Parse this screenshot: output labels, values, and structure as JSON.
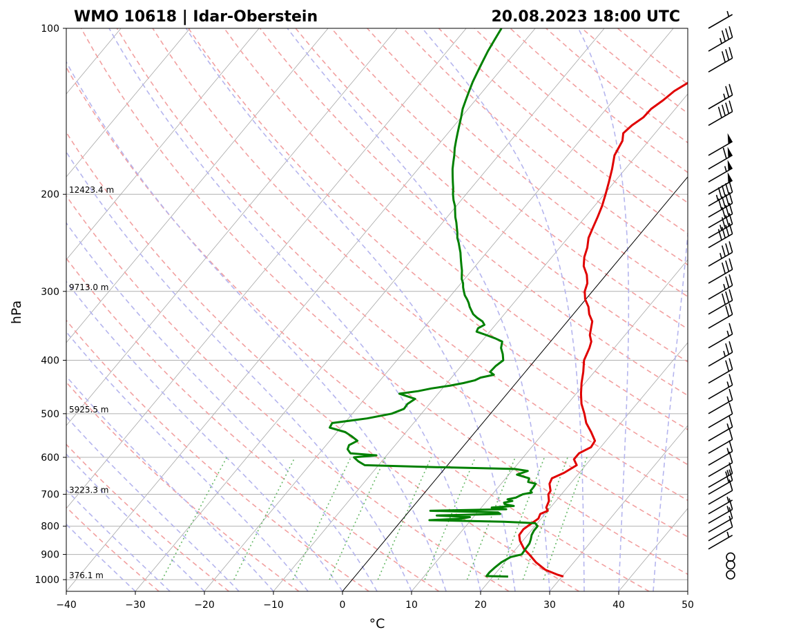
{
  "titles": {
    "left": "WMO 10618 | Idar-Oberstein",
    "right": "20.08.2023 18:00 UTC"
  },
  "chart_data": {
    "type": "skew-t log-p sounding",
    "title_left": "WMO 10618 | Idar-Oberstein",
    "title_right": "20.08.2023 18:00 UTC",
    "xlabel": "°C",
    "ylabel": "hPa",
    "xlim": [
      -40,
      50
    ],
    "ylim": [
      1050,
      100
    ],
    "y_scale": "log",
    "x_ticks": [
      -40,
      -30,
      -20,
      -10,
      0,
      10,
      20,
      30,
      40,
      50
    ],
    "y_ticks": [
      100,
      200,
      300,
      400,
      500,
      600,
      700,
      800,
      900,
      1000
    ],
    "grid": true,
    "height_labels": [
      {
        "p": 200,
        "text": "12423.4 m"
      },
      {
        "p": 300,
        "text": "9713.0 m"
      },
      {
        "p": 500,
        "text": "5925.5 m"
      },
      {
        "p": 700,
        "text": "3223.3 m"
      },
      {
        "p": 1000,
        "text": "376.1 m"
      }
    ],
    "series": [
      {
        "role": "temperature",
        "color": "#e00000",
        "points": [
          [
            987,
            30.2
          ],
          [
            980,
            29.2
          ],
          [
            960,
            26.8
          ],
          [
            930,
            24.5
          ],
          [
            900,
            22.6
          ],
          [
            880,
            21.2
          ],
          [
            850,
            19.6
          ],
          [
            830,
            18.8
          ],
          [
            810,
            18.7
          ],
          [
            790,
            19.2
          ],
          [
            775,
            19.6
          ],
          [
            760,
            19.3
          ],
          [
            750,
            20.0
          ],
          [
            740,
            19.4
          ],
          [
            720,
            19.0
          ],
          [
            700,
            18.1
          ],
          [
            690,
            18.0
          ],
          [
            670,
            17.0
          ],
          [
            655,
            16.7
          ],
          [
            640,
            17.8
          ],
          [
            620,
            18.7
          ],
          [
            605,
            17.6
          ],
          [
            590,
            17.6
          ],
          [
            575,
            18.6
          ],
          [
            560,
            18.4
          ],
          [
            540,
            16.8
          ],
          [
            520,
            15.0
          ],
          [
            500,
            13.6
          ],
          [
            480,
            12.0
          ],
          [
            460,
            10.7
          ],
          [
            440,
            9.5
          ],
          [
            420,
            8.4
          ],
          [
            400,
            7.1
          ],
          [
            380,
            6.4
          ],
          [
            370,
            5.9
          ],
          [
            360,
            4.9
          ],
          [
            340,
            3.6
          ],
          [
            330,
            2.3
          ],
          [
            320,
            1.3
          ],
          [
            310,
            -0.1
          ],
          [
            300,
            -1.1
          ],
          [
            290,
            -1.7
          ],
          [
            280,
            -2.8
          ],
          [
            270,
            -4.3
          ],
          [
            260,
            -5.3
          ],
          [
            250,
            -6.0
          ],
          [
            240,
            -7.0
          ],
          [
            230,
            -7.6
          ],
          [
            220,
            -8.2
          ],
          [
            210,
            -8.9
          ],
          [
            200,
            -9.8
          ],
          [
            190,
            -10.8
          ],
          [
            180,
            -11.9
          ],
          [
            170,
            -13.2
          ],
          [
            160,
            -13.8
          ],
          [
            155,
            -14.6
          ],
          [
            150,
            -14.3
          ],
          [
            145,
            -13.6
          ],
          [
            140,
            -13.5
          ],
          [
            135,
            -12.8
          ],
          [
            130,
            -12.3
          ],
          [
            125,
            -11.2
          ],
          [
            120,
            -10.6
          ],
          [
            115,
            -9.1
          ],
          [
            112,
            -7.6
          ],
          [
            110,
            -6.3
          ],
          [
            106,
            -4.5
          ],
          [
            103,
            -3.2
          ],
          [
            100,
            -2.5
          ]
        ]
      },
      {
        "role": "dewpoint",
        "color": "#008000",
        "points": [
          [
            987,
            22.2
          ],
          [
            985,
            19.0
          ],
          [
            970,
            19.0
          ],
          [
            950,
            19.2
          ],
          [
            930,
            19.5
          ],
          [
            910,
            20.2
          ],
          [
            900,
            21.5
          ],
          [
            880,
            21.4
          ],
          [
            860,
            21.3
          ],
          [
            845,
            21.0
          ],
          [
            830,
            20.6
          ],
          [
            815,
            20.4
          ],
          [
            800,
            20.4
          ],
          [
            790,
            19.7
          ],
          [
            785,
            15.0
          ],
          [
            780,
            4.0
          ],
          [
            775,
            8.5
          ],
          [
            770,
            9.5
          ],
          [
            765,
            4.5
          ],
          [
            760,
            13.5
          ],
          [
            755,
            13.0
          ],
          [
            750,
            3.0
          ],
          [
            745,
            13.8
          ],
          [
            740,
            11.5
          ],
          [
            735,
            14.5
          ],
          [
            730,
            13.0
          ],
          [
            725,
            12.7
          ],
          [
            720,
            13.7
          ],
          [
            715,
            12.8
          ],
          [
            710,
            13.8
          ],
          [
            705,
            14.1
          ],
          [
            700,
            14.4
          ],
          [
            695,
            15.5
          ],
          [
            690,
            15.1
          ],
          [
            680,
            15.1
          ],
          [
            670,
            15.0
          ],
          [
            665,
            13.7
          ],
          [
            655,
            13.4
          ],
          [
            645,
            11.2
          ],
          [
            635,
            12.3
          ],
          [
            630,
            10.2
          ],
          [
            625,
            -1.5
          ],
          [
            620,
            -12.0
          ],
          [
            610,
            -13.4
          ],
          [
            600,
            -14.5
          ],
          [
            595,
            -11.5
          ],
          [
            590,
            -15.5
          ],
          [
            580,
            -16.4
          ],
          [
            570,
            -16.7
          ],
          [
            560,
            -16.0
          ],
          [
            550,
            -17.3
          ],
          [
            540,
            -18.8
          ],
          [
            530,
            -21.6
          ],
          [
            520,
            -21.8
          ],
          [
            510,
            -17.3
          ],
          [
            500,
            -14.3
          ],
          [
            490,
            -13.1
          ],
          [
            480,
            -13.2
          ],
          [
            470,
            -12.7
          ],
          [
            460,
            -15.6
          ],
          [
            455,
            -13.2
          ],
          [
            450,
            -11.6
          ],
          [
            445,
            -9.3
          ],
          [
            440,
            -7.6
          ],
          [
            435,
            -6.3
          ],
          [
            430,
            -5.8
          ],
          [
            425,
            -4.2
          ],
          [
            420,
            -5.1
          ],
          [
            410,
            -5.0
          ],
          [
            400,
            -4.6
          ],
          [
            390,
            -5.4
          ],
          [
            380,
            -6.4
          ],
          [
            370,
            -7.0
          ],
          [
            365,
            -8.4
          ],
          [
            360,
            -10.1
          ],
          [
            355,
            -11.9
          ],
          [
            350,
            -12.1
          ],
          [
            345,
            -11.6
          ],
          [
            340,
            -12.3
          ],
          [
            335,
            -13.5
          ],
          [
            330,
            -14.5
          ],
          [
            325,
            -15.2
          ],
          [
            320,
            -15.9
          ],
          [
            315,
            -16.5
          ],
          [
            310,
            -17.2
          ],
          [
            305,
            -18.0
          ],
          [
            300,
            -18.6
          ],
          [
            295,
            -19.2
          ],
          [
            290,
            -19.7
          ],
          [
            285,
            -20.4
          ],
          [
            280,
            -20.9
          ],
          [
            275,
            -21.4
          ],
          [
            270,
            -22.0
          ],
          [
            265,
            -22.6
          ],
          [
            260,
            -23.2
          ],
          [
            255,
            -23.8
          ],
          [
            250,
            -24.5
          ],
          [
            245,
            -25.2
          ],
          [
            240,
            -26.0
          ],
          [
            235,
            -26.6
          ],
          [
            230,
            -27.3
          ],
          [
            225,
            -28.0
          ],
          [
            220,
            -28.8
          ],
          [
            215,
            -29.5
          ],
          [
            210,
            -30.2
          ],
          [
            205,
            -31.1
          ],
          [
            200,
            -31.9
          ],
          [
            195,
            -32.6
          ],
          [
            190,
            -33.4
          ],
          [
            185,
            -34.2
          ],
          [
            180,
            -35.0
          ],
          [
            175,
            -35.7
          ],
          [
            170,
            -36.4
          ],
          [
            165,
            -37.2
          ],
          [
            160,
            -37.9
          ],
          [
            155,
            -38.6
          ],
          [
            150,
            -39.3
          ],
          [
            145,
            -40.0
          ],
          [
            140,
            -40.8
          ],
          [
            135,
            -41.4
          ],
          [
            130,
            -42.0
          ],
          [
            125,
            -42.6
          ],
          [
            120,
            -43.1
          ],
          [
            115,
            -43.6
          ],
          [
            110,
            -44.1
          ],
          [
            105,
            -44.5
          ],
          [
            100,
            -44.9
          ]
        ]
      }
    ],
    "reference_lines": {
      "isotherms": "grey solid, every 10 °C",
      "dry_adiabats": "red dashed",
      "moist_adiabats": "blue dashed",
      "mixing_ratio_lines": "green dotted",
      "zero_isotherm": "black solid"
    },
    "wind_barbs": [
      {
        "p": 100,
        "speed_kt": 5
      },
      {
        "p": 110,
        "speed_kt": 35
      },
      {
        "p": 120,
        "speed_kt": 30
      },
      {
        "p": 140,
        "speed_kt": 25
      },
      {
        "p": 150,
        "speed_kt": 40
      },
      {
        "p": 170,
        "speed_kt": 50
      },
      {
        "p": 180,
        "speed_kt": 60
      },
      {
        "p": 190,
        "speed_kt": 55
      },
      {
        "p": 200,
        "speed_kt": 50
      },
      {
        "p": 210,
        "speed_kt": 45
      },
      {
        "p": 220,
        "speed_kt": 40
      },
      {
        "p": 230,
        "speed_kt": 30
      },
      {
        "p": 240,
        "speed_kt": 35
      },
      {
        "p": 250,
        "speed_kt": 40
      },
      {
        "p": 270,
        "speed_kt": 35
      },
      {
        "p": 290,
        "speed_kt": 30
      },
      {
        "p": 310,
        "speed_kt": 25
      },
      {
        "p": 330,
        "speed_kt": 30
      },
      {
        "p": 350,
        "speed_kt": 20
      },
      {
        "p": 380,
        "speed_kt": 15
      },
      {
        "p": 410,
        "speed_kt": 25
      },
      {
        "p": 440,
        "speed_kt": 20
      },
      {
        "p": 470,
        "speed_kt": 15
      },
      {
        "p": 500,
        "speed_kt": 15
      },
      {
        "p": 530,
        "speed_kt": 10
      },
      {
        "p": 560,
        "speed_kt": 15
      },
      {
        "p": 590,
        "speed_kt": 10
      },
      {
        "p": 620,
        "speed_kt": 15
      },
      {
        "p": 650,
        "speed_kt": 10
      },
      {
        "p": 680,
        "speed_kt": 15
      },
      {
        "p": 700,
        "speed_kt": 20
      },
      {
        "p": 730,
        "speed_kt": 10
      },
      {
        "p": 760,
        "speed_kt": 5
      },
      {
        "p": 790,
        "speed_kt": 15
      },
      {
        "p": 820,
        "speed_kt": 10
      },
      {
        "p": 850,
        "speed_kt": 10
      },
      {
        "p": 880,
        "speed_kt": 5
      },
      {
        "p": 910,
        "speed_kt": 0
      },
      {
        "p": 940,
        "speed_kt": 0
      },
      {
        "p": 980,
        "speed_kt": 0
      }
    ]
  }
}
